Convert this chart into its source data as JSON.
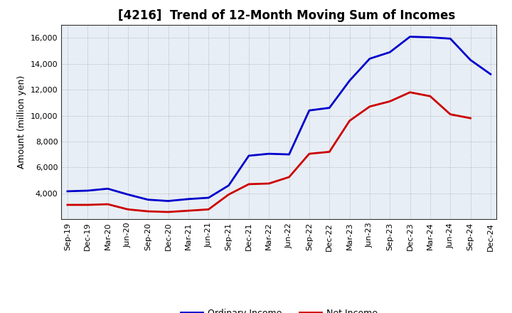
{
  "title": "[4216]  Trend of 12-Month Moving Sum of Incomes",
  "ylabel": "Amount (million yen)",
  "x_labels": [
    "Sep-19",
    "Dec-19",
    "Mar-20",
    "Jun-20",
    "Sep-20",
    "Dec-20",
    "Mar-21",
    "Jun-21",
    "Sep-21",
    "Dec-21",
    "Mar-22",
    "Jun-22",
    "Sep-22",
    "Dec-22",
    "Mar-23",
    "Jun-23",
    "Sep-23",
    "Dec-23",
    "Mar-24",
    "Jun-24",
    "Sep-24",
    "Dec-24"
  ],
  "ordinary_income": [
    4150,
    4200,
    4350,
    3900,
    3500,
    3400,
    3550,
    3650,
    4600,
    6900,
    7050,
    7000,
    10400,
    10600,
    12700,
    14400,
    14900,
    16100,
    16050,
    15950,
    14300,
    13200
  ],
  "net_income": [
    3100,
    3100,
    3150,
    2750,
    2600,
    2550,
    2650,
    2750,
    3900,
    4700,
    4750,
    5250,
    7050,
    7200,
    9600,
    10700,
    11100,
    11800,
    11500,
    10100,
    9800,
    null
  ],
  "ordinary_color": "#0000cc",
  "net_color": "#cc0000",
  "background_color": "#ffffff",
  "plot_bg_color": "#e8eef5",
  "grid_color": "#888888",
  "ylim": [
    2000,
    17000
  ],
  "yticks": [
    4000,
    6000,
    8000,
    10000,
    12000,
    14000,
    16000
  ],
  "line_width": 2.0,
  "title_fontsize": 12,
  "axis_label_fontsize": 9,
  "tick_fontsize": 8,
  "legend_fontsize": 9
}
